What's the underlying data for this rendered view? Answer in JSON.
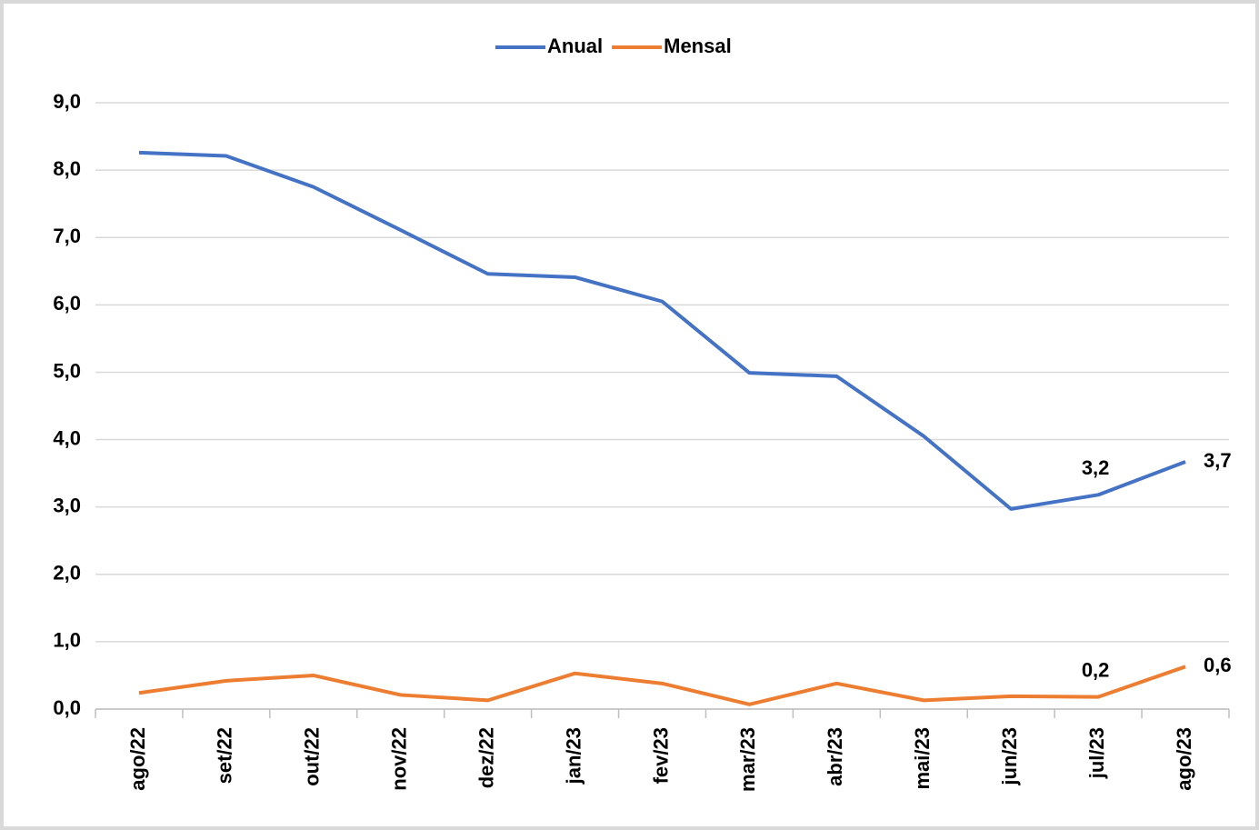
{
  "chart_data": {
    "type": "line",
    "categories": [
      "ago/22",
      "set/22",
      "out/22",
      "nov/22",
      "dez/22",
      "jan/23",
      "fev/23",
      "mar/23",
      "abr/23",
      "mai/23",
      "jun/23",
      "jul/23",
      "ago/23"
    ],
    "series": [
      {
        "name": "Anual",
        "color": "#4472c4",
        "values": [
          8.26,
          8.21,
          7.75,
          7.11,
          6.46,
          6.41,
          6.05,
          4.99,
          4.94,
          4.05,
          2.97,
          3.18,
          3.67
        ],
        "value_labels": [
          null,
          null,
          null,
          null,
          null,
          null,
          null,
          null,
          null,
          null,
          null,
          "3,2",
          "3,7"
        ]
      },
      {
        "name": "Mensal",
        "color": "#ed7d31",
        "values": [
          0.24,
          0.42,
          0.5,
          0.21,
          0.13,
          0.53,
          0.38,
          0.07,
          0.38,
          0.13,
          0.19,
          0.18,
          0.63
        ],
        "value_labels": [
          null,
          null,
          null,
          null,
          null,
          null,
          null,
          null,
          null,
          null,
          null,
          "0,2",
          "0,6"
        ]
      }
    ],
    "ylim": [
      0,
      9
    ],
    "yticks": [
      {
        "value": 0,
        "label": "0,0"
      },
      {
        "value": 1,
        "label": "1,0"
      },
      {
        "value": 2,
        "label": "2,0"
      },
      {
        "value": 3,
        "label": "3,0"
      },
      {
        "value": 4,
        "label": "4,0"
      },
      {
        "value": 5,
        "label": "5,0"
      },
      {
        "value": 6,
        "label": "6,0"
      },
      {
        "value": 7,
        "label": "7,0"
      },
      {
        "value": 8,
        "label": "8,0"
      },
      {
        "value": 9,
        "label": "9,0"
      }
    ],
    "grid": true,
    "legend": "top"
  }
}
